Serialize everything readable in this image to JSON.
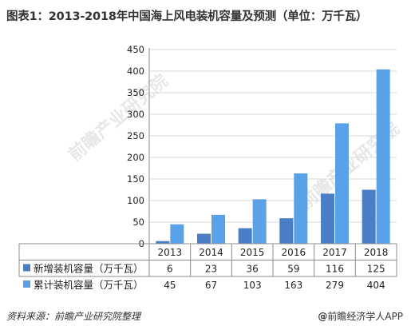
{
  "title": "图表1：2013-2018年中国海上风电装机容量及预测（单位：万千瓦）",
  "source": "资料来源：前瞻产业研究院整理",
  "brand_mark": "@",
  "brand": "前瞻经济学人APP",
  "watermark": "前瞻产业研究院",
  "colors": {
    "series1": "#4a7ec7",
    "series2": "#5aa2e8",
    "grid": "#d9d9d9",
    "axis": "#8c8c8c"
  },
  "chart_data": {
    "type": "bar",
    "title": "图表1：2013-2018年中国海上风电装机容量及预测（单位：万千瓦）",
    "categories": [
      "2013",
      "2014",
      "2015",
      "2016",
      "2017",
      "2018"
    ],
    "series": [
      {
        "name": "新增装机容量（万千瓦）",
        "values": [
          6,
          23,
          36,
          59,
          116,
          125
        ]
      },
      {
        "name": "累计装机容量（万千瓦）",
        "values": [
          45,
          67,
          103,
          163,
          279,
          404
        ]
      }
    ],
    "yticks": [
      0,
      50,
      100,
      150,
      200,
      250,
      300,
      350,
      400,
      450
    ],
    "ylim": [
      0,
      450
    ],
    "grid": true,
    "legend": "data-table"
  }
}
